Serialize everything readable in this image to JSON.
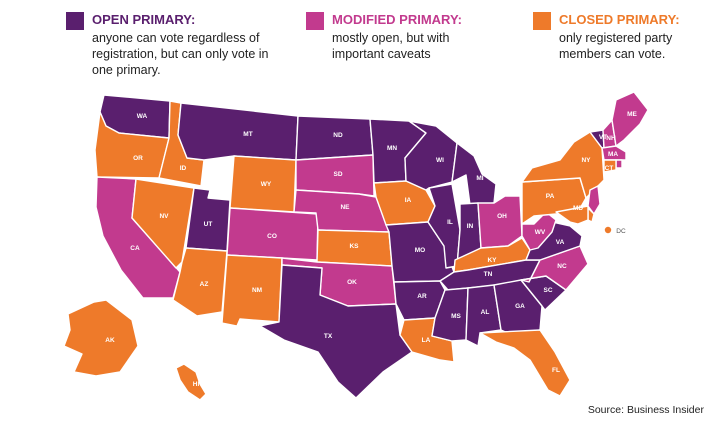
{
  "colors": {
    "open": "#5a1f6e",
    "modified": "#c23a8e",
    "closed": "#ee7a2a"
  },
  "legend": [
    {
      "key": "open",
      "title": "OPEN PRIMARY:",
      "description": "anyone can vote regardless of registration, but can only vote in one primary."
    },
    {
      "key": "modified",
      "title": "MODIFIED PRIMARY:",
      "description": "mostly open, but with important caveats"
    },
    {
      "key": "closed",
      "title": "CLOSED PRIMARY:",
      "description": "only registered party members can vote."
    }
  ],
  "states": [
    {
      "code": "WA",
      "type": "open"
    },
    {
      "code": "OR",
      "type": "closed"
    },
    {
      "code": "CA",
      "type": "modified"
    },
    {
      "code": "ID",
      "type": "closed"
    },
    {
      "code": "NV",
      "type": "closed"
    },
    {
      "code": "UT",
      "type": "open"
    },
    {
      "code": "AZ",
      "type": "closed"
    },
    {
      "code": "MT",
      "type": "open"
    },
    {
      "code": "WY",
      "type": "closed"
    },
    {
      "code": "CO",
      "type": "modified"
    },
    {
      "code": "NM",
      "type": "closed"
    },
    {
      "code": "ND",
      "type": "open"
    },
    {
      "code": "SD",
      "type": "modified"
    },
    {
      "code": "NE",
      "type": "modified"
    },
    {
      "code": "KS",
      "type": "closed"
    },
    {
      "code": "OK",
      "type": "modified"
    },
    {
      "code": "TX",
      "type": "open"
    },
    {
      "code": "MN",
      "type": "open"
    },
    {
      "code": "IA",
      "type": "closed"
    },
    {
      "code": "MO",
      "type": "open"
    },
    {
      "code": "AR",
      "type": "open"
    },
    {
      "code": "LA",
      "type": "closed"
    },
    {
      "code": "WI",
      "type": "open"
    },
    {
      "code": "IL",
      "type": "open"
    },
    {
      "code": "MI",
      "type": "open"
    },
    {
      "code": "IN",
      "type": "open"
    },
    {
      "code": "OH",
      "type": "modified"
    },
    {
      "code": "KY",
      "type": "closed"
    },
    {
      "code": "TN",
      "type": "open"
    },
    {
      "code": "MS",
      "type": "open"
    },
    {
      "code": "AL",
      "type": "open"
    },
    {
      "code": "GA",
      "type": "open"
    },
    {
      "code": "FL",
      "type": "closed"
    },
    {
      "code": "SC",
      "type": "open"
    },
    {
      "code": "NC",
      "type": "modified"
    },
    {
      "code": "VA",
      "type": "open"
    },
    {
      "code": "WV",
      "type": "modified"
    },
    {
      "code": "PA",
      "type": "closed"
    },
    {
      "code": "NY",
      "type": "closed"
    },
    {
      "code": "VT",
      "type": "open"
    },
    {
      "code": "NH",
      "type": "modified"
    },
    {
      "code": "ME",
      "type": "modified"
    },
    {
      "code": "MA",
      "type": "modified"
    },
    {
      "code": "RI",
      "type": "modified"
    },
    {
      "code": "CT",
      "type": "closed"
    },
    {
      "code": "NJ",
      "type": "modified"
    },
    {
      "code": "DE",
      "type": "closed"
    },
    {
      "code": "MD",
      "type": "closed"
    },
    {
      "code": "DC",
      "type": "closed"
    },
    {
      "code": "AK",
      "type": "closed"
    },
    {
      "code": "HI",
      "type": "closed"
    }
  ],
  "source": "Source: Business Insider"
}
